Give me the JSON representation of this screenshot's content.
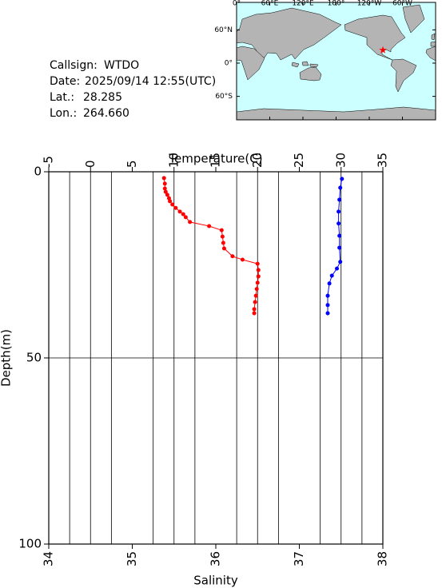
{
  "info": {
    "callsign_label": "Callsign:",
    "callsign": "WTDO",
    "date_label": "Date:",
    "date": "2025/09/14 12:55(UTC)",
    "lat_label": "Lat.:",
    "lat": "28.285",
    "lon_label": "Lon.:",
    "lon": "264.660"
  },
  "map": {
    "lon_labels": [
      "0°",
      "60°E",
      "120°E",
      "180°",
      "120°W",
      "60°W"
    ],
    "lat_labels": [
      "60°N",
      "0°",
      "60°S"
    ],
    "marker_color": "#ff0000"
  },
  "chart_data": {
    "type": "profile",
    "x_label": "Temperature(C)",
    "x2_label": "Salinity",
    "y_label": "Depth(m)",
    "xlim": [
      -5,
      35
    ],
    "xticks": [
      -5,
      0,
      5,
      10,
      15,
      20,
      25,
      30,
      35
    ],
    "x2lim": [
      34,
      38
    ],
    "x2ticks": [
      34,
      35,
      36,
      37,
      38
    ],
    "x2_minor_ticks": [
      34.25,
      34.5,
      34.75,
      35.25,
      35.5,
      35.75,
      36.25,
      36.5,
      36.75,
      37.25,
      37.5,
      37.75
    ],
    "ylim": [
      0,
      100
    ],
    "yticks": [
      0,
      50,
      100
    ],
    "y_inverted": true,
    "grid": true,
    "series": [
      {
        "axis": "x",
        "color": "#ff0000",
        "values": [
          8.8,
          8.9,
          8.9,
          9.0,
          9.2,
          9.4,
          9.5,
          9.8,
          10.2,
          10.7,
          11.1,
          11.4,
          11.9,
          14.2,
          15.7,
          15.8,
          15.9,
          16.0,
          17.0,
          18.2,
          20.0,
          20.1,
          20.1,
          20.0,
          19.9,
          19.8,
          19.7,
          19.6,
          19.6
        ],
        "depth": [
          1.7,
          3.2,
          4.5,
          5.4,
          6.2,
          7.1,
          7.9,
          8.8,
          9.7,
          10.7,
          11.4,
          12.2,
          13.5,
          14.6,
          15.7,
          17.4,
          19.1,
          20.6,
          22.7,
          23.6,
          24.7,
          26.4,
          28.1,
          29.8,
          31.5,
          33.3,
          35.0,
          36.9,
          38.0
        ]
      },
      {
        "axis": "x2",
        "color": "#0000ff",
        "values": [
          37.51,
          37.49,
          37.48,
          37.47,
          37.47,
          37.48,
          37.48,
          37.49,
          37.45,
          37.39,
          37.36,
          37.34,
          37.34,
          37.34
        ],
        "depth": [
          1.9,
          4.3,
          7.5,
          10.7,
          13.9,
          17.2,
          20.4,
          24.2,
          26.0,
          27.9,
          30.0,
          33.3,
          35.8,
          38.0
        ]
      }
    ]
  }
}
